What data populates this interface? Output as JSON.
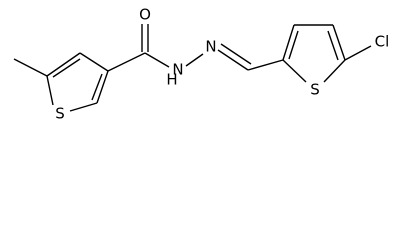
{
  "atoms": [
    {
      "label": "O"
    },
    {
      "label": "S"
    },
    {
      "label": "N"
    },
    {
      "label": "H"
    },
    {
      "label": "N"
    },
    {
      "label": "S"
    },
    {
      "label": "Cl"
    }
  ]
}
